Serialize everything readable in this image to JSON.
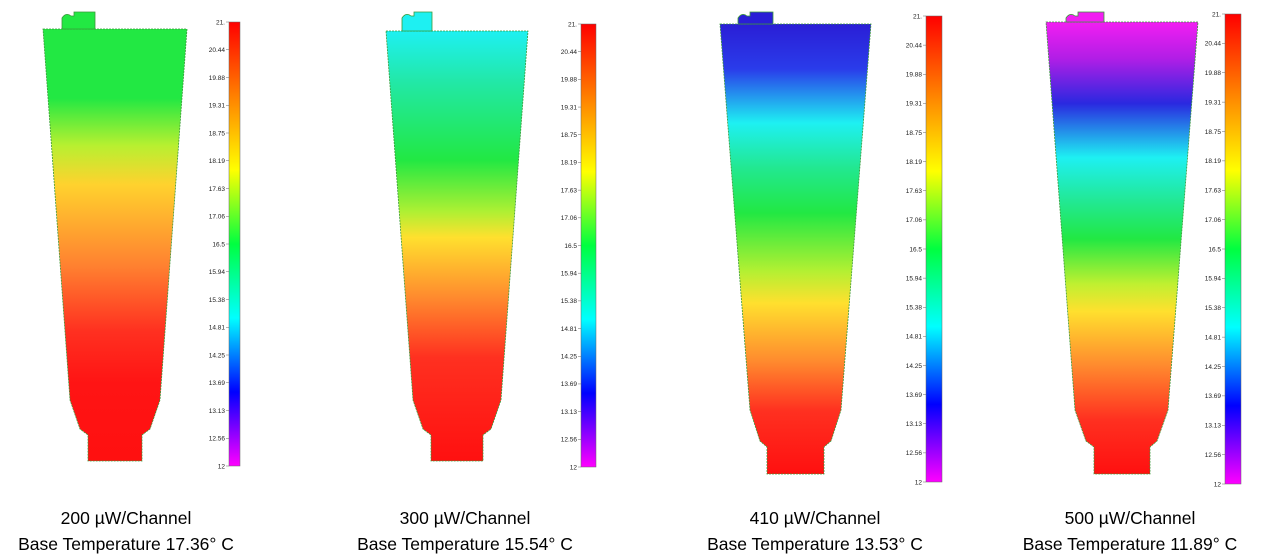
{
  "scale": {
    "min_label": "12",
    "max_label": "21.",
    "ticks": [
      "21.",
      "20.44",
      "19.88",
      "19.31",
      "18.75",
      "18.19",
      "17.63",
      "17.06",
      "16.5",
      "15.94",
      "15.38",
      "14.81",
      "14.25",
      "13.69",
      "13.13",
      "12.56",
      "12"
    ],
    "colors_top_to_bottom": [
      "#ff0000",
      "#ff8000",
      "#ffff00",
      "#00ff40",
      "#00ffff",
      "#0000ff",
      "#ff00ff"
    ]
  },
  "panels": [
    {
      "power_label": "200 µW/Channel",
      "base_temp_label": "Base Temperature 17.36° C",
      "top_color": "#22e843",
      "gradient": [
        {
          "pos": 0.0,
          "color": "#22e843"
        },
        {
          "pos": 0.16,
          "color": "#22e843"
        },
        {
          "pos": 0.27,
          "color": "#b8f030"
        },
        {
          "pos": 0.36,
          "color": "#ffd22e"
        },
        {
          "pos": 0.55,
          "color": "#ff8030"
        },
        {
          "pos": 0.7,
          "color": "#ff3020"
        },
        {
          "pos": 0.82,
          "color": "#ff1414"
        },
        {
          "pos": 1.0,
          "color": "#ff1010"
        }
      ]
    },
    {
      "power_label": "300 µW/Channel",
      "base_temp_label": "Base Temperature 15.54° C",
      "top_color": "#1ef0f2",
      "gradient": [
        {
          "pos": 0.0,
          "color": "#1ef0f2"
        },
        {
          "pos": 0.12,
          "color": "#22e8a6"
        },
        {
          "pos": 0.3,
          "color": "#22e843"
        },
        {
          "pos": 0.42,
          "color": "#aef033"
        },
        {
          "pos": 0.48,
          "color": "#ffe02e"
        },
        {
          "pos": 0.62,
          "color": "#ff8a2e"
        },
        {
          "pos": 0.76,
          "color": "#ff3020"
        },
        {
          "pos": 1.0,
          "color": "#ff1010"
        }
      ]
    },
    {
      "power_label": "410 µW/Channel",
      "base_temp_label": "Base Temperature 13.53° C",
      "top_color": "#2a1ed6",
      "gradient": [
        {
          "pos": 0.0,
          "color": "#2a1ed6"
        },
        {
          "pos": 0.1,
          "color": "#2a3cea"
        },
        {
          "pos": 0.22,
          "color": "#1ef0f2"
        },
        {
          "pos": 0.32,
          "color": "#22e890"
        },
        {
          "pos": 0.42,
          "color": "#22e843"
        },
        {
          "pos": 0.55,
          "color": "#b4f032"
        },
        {
          "pos": 0.62,
          "color": "#ffe02e"
        },
        {
          "pos": 0.75,
          "color": "#ff8a2e"
        },
        {
          "pos": 0.86,
          "color": "#ff3020"
        },
        {
          "pos": 1.0,
          "color": "#ff1010"
        }
      ]
    },
    {
      "power_label": "500 µW/Channel",
      "base_temp_label": "Base Temperature 11.89° C",
      "top_color": "#f21ef2",
      "gradient": [
        {
          "pos": 0.0,
          "color": "#f21ef2"
        },
        {
          "pos": 0.08,
          "color": "#b21ee6"
        },
        {
          "pos": 0.18,
          "color": "#2a28e0"
        },
        {
          "pos": 0.3,
          "color": "#1ef0f2"
        },
        {
          "pos": 0.4,
          "color": "#22e890"
        },
        {
          "pos": 0.48,
          "color": "#22e843"
        },
        {
          "pos": 0.58,
          "color": "#c0f030"
        },
        {
          "pos": 0.64,
          "color": "#ffe02e"
        },
        {
          "pos": 0.76,
          "color": "#ff8a2e"
        },
        {
          "pos": 0.88,
          "color": "#ff3020"
        },
        {
          "pos": 1.0,
          "color": "#ff1010"
        }
      ]
    }
  ]
}
